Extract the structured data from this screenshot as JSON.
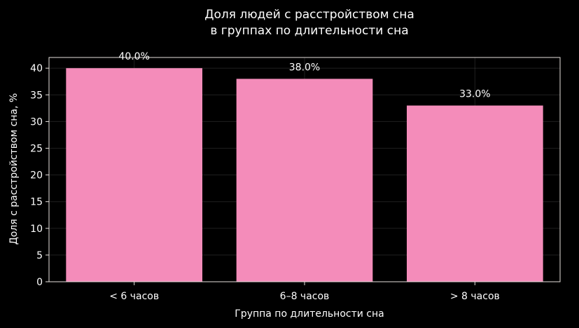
{
  "chart_data": {
    "type": "bar",
    "title": [
      "Доля людей с расстройством сна",
      "в группах по длительности сна"
    ],
    "xlabel": "Группа по длительности сна",
    "ylabel": "Доля с расстройством сна, %",
    "categories": [
      "< 6 часов",
      "6–8 часов",
      "> 8 часов"
    ],
    "values": [
      40.0,
      38.0,
      33.0
    ],
    "data_labels": [
      "40.0%",
      "38.0%",
      "33.0%"
    ],
    "ylim": [
      0,
      42
    ],
    "yticks": [
      0,
      5,
      10,
      15,
      20,
      25,
      30,
      35,
      40
    ],
    "grid": true,
    "colors": {
      "bar": "#f48cba",
      "background": "#000000",
      "text": "#ffffff"
    }
  }
}
